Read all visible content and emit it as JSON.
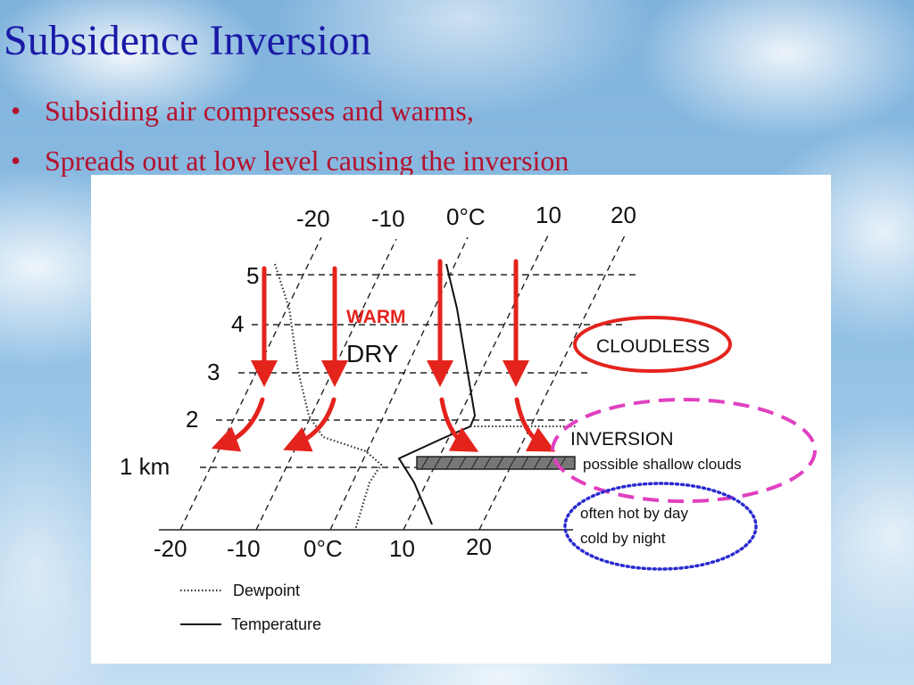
{
  "slide": {
    "title": "Subsidence Inversion",
    "bullets": [
      "Subsiding air compresses and warms,",
      "Spreads out at low level causing the inversion"
    ]
  },
  "diagram": {
    "top_axis_labels": [
      "-20",
      "-10",
      "0°C",
      "10",
      "20"
    ],
    "bottom_axis_labels": [
      "-20",
      "-10",
      "0°C",
      "10",
      "20"
    ],
    "height_labels": [
      "5",
      "4",
      "3",
      "2",
      "1 km"
    ],
    "annotations": {
      "warm": "WARM",
      "dry": "DRY",
      "cloudless": "CLOUDLESS",
      "inversion": "INVERSION",
      "shallow_clouds": "possible shallow clouds",
      "hot_by_day": "often hot by day",
      "cold_by_night": "cold by night"
    },
    "legend": {
      "dewpoint": "Dewpoint",
      "temperature": "Temperature"
    },
    "colors": {
      "arrow": "#e4231d",
      "cloudless_circle": "#e4231d",
      "inversion_ellipse": "#e040c0",
      "hot_cold_ellipse": "#2a2ad0",
      "warm_text": "#e4231d"
    }
  }
}
